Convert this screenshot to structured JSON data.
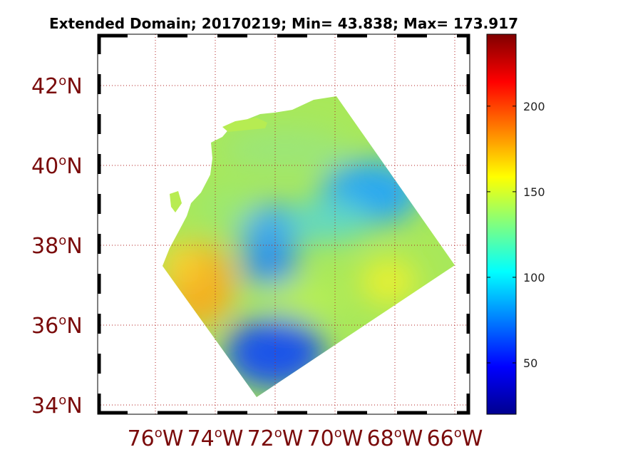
{
  "title": "Extended Domain; 20170219; Min= 43.838; Max= 173.917",
  "map": {
    "lat_labels": [
      {
        "value": 42,
        "deg": "42",
        "hemi": "N"
      },
      {
        "value": 40,
        "deg": "40",
        "hemi": "N"
      },
      {
        "value": 38,
        "deg": "38",
        "hemi": "N"
      },
      {
        "value": 36,
        "deg": "36",
        "hemi": "N"
      },
      {
        "value": 34,
        "deg": "34",
        "hemi": "N"
      }
    ],
    "lon_labels": [
      {
        "value": -76,
        "deg": "76",
        "hemi": "W"
      },
      {
        "value": -74,
        "deg": "74",
        "hemi": "W"
      },
      {
        "value": -72,
        "deg": "72",
        "hemi": "W"
      },
      {
        "value": -70,
        "deg": "70",
        "hemi": "W"
      },
      {
        "value": -68,
        "deg": "68",
        "hemi": "W"
      },
      {
        "value": -66,
        "deg": "66",
        "hemi": "W"
      }
    ],
    "label_color": "#7a0b0b",
    "grid": "dotted"
  },
  "colorbar": {
    "ticks": [
      "50",
      "100",
      "150",
      "200"
    ],
    "tick_values": [
      50,
      100,
      150,
      200
    ],
    "range": [
      20,
      242
    ],
    "colormap": "jet"
  }
}
